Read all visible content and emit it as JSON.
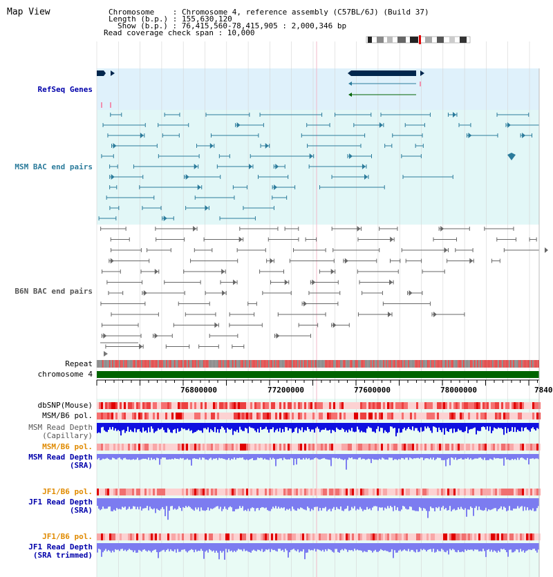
{
  "view": {
    "title": "Map View"
  },
  "info": {
    "chromosome": "Chromosome    : Chromosome 4, reference assembly (C57BL/6J) (Build 37)",
    "length": "Length (b.p.) : 155,630,120",
    "show": "Show (b.p.) : 76,415,560-78,415,905 : 2,000,346 bp",
    "coverage": "Read coverage check span : 10,000"
  },
  "tracks": {
    "refseq": "RefSeq Genes",
    "msm_bac": "MSM BAC end pairs",
    "b6n_bac": "B6N BAC end pairs",
    "repeat": "Repeat",
    "chromosome": "chromosome 4",
    "dbsnp": "dbSNP(Mouse)",
    "msm_b6_pol_1": "MSM/B6 pol.",
    "msm_depth_cap_1": "MSM Read Depth",
    "msm_depth_cap_2": "(Capillary)",
    "msm_b6_pol_2": "MSM/B6 pol.",
    "msm_depth_sra_1": "MSM Read Depth",
    "msm_depth_sra_2": "(SRA)",
    "jf1_b6_pol_1": "JF1/B6 pol.",
    "jf1_depth_sra_1": "JF1 Read Depth",
    "jf1_depth_sra_2": "(SRA)",
    "jf1_b6_pol_2": "JF1/B6 pol.",
    "jf1_depth_trim_1": "JF1 Read Depth",
    "jf1_depth_trim_2": "(SRA trimmed)"
  },
  "axis": {
    "ticks": [
      "76800000",
      "77200000",
      "77600000",
      "78000000",
      "7840"
    ]
  },
  "colors": {
    "refseq_bg": "#dff1fb",
    "msm_bg": "#e2f7f7",
    "b6n_bg": "#ffffff",
    "depth_bg": "#e9fbf5",
    "gene_fill": "#00264d",
    "msm_line": "#2b7b9b",
    "b6n_line": "#666666",
    "chrom_green": "#006400",
    "msm_depth": "#1010e0",
    "sra_depth": "#7c7cf0",
    "label_blue": "#0000aa",
    "label_teal": "#2b7b9b",
    "label_orange": "#e08a00",
    "label_gray": "#555555"
  }
}
